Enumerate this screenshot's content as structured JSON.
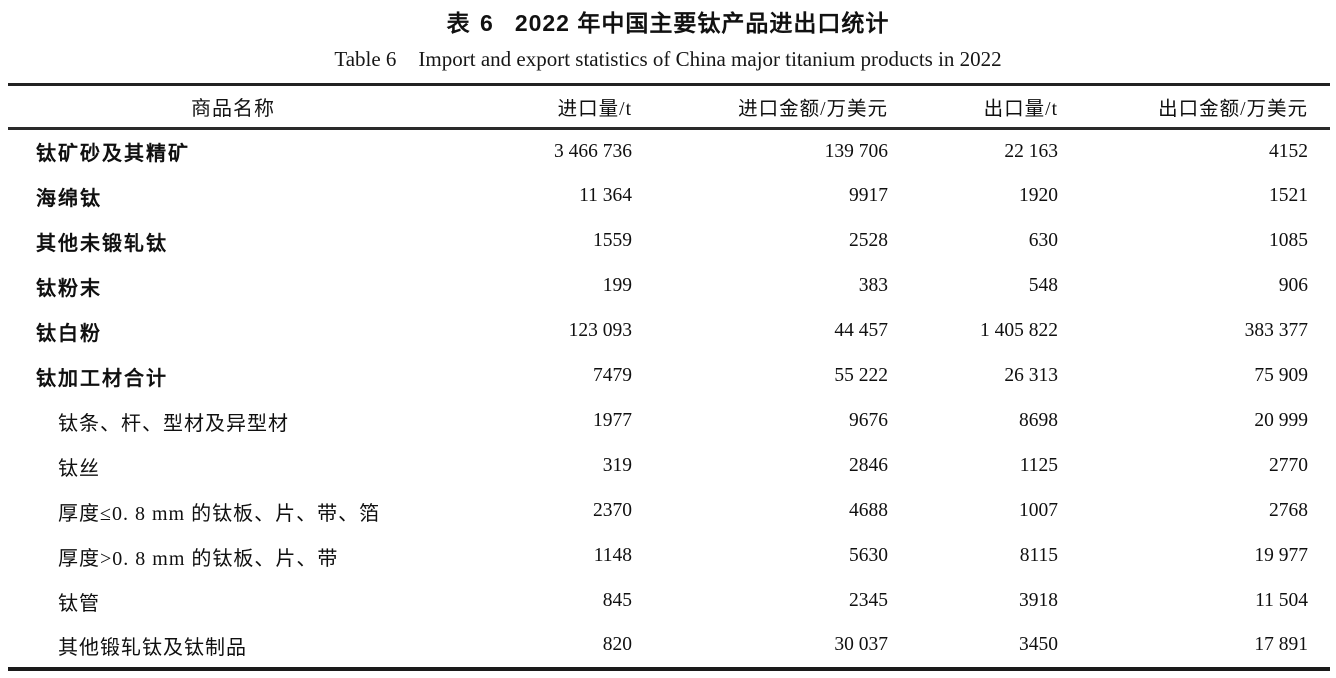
{
  "document": {
    "title_zh": {
      "label": "表 6",
      "text": "2022 年中国主要钛产品进出口统计"
    },
    "title_en": {
      "label": "Table 6",
      "text": "Import and export statistics of China major titanium products in 2022"
    }
  },
  "table": {
    "columns": [
      "商品名称",
      "进口量/t",
      "进口金额/万美元",
      "出口量/t",
      "出口金额/万美元"
    ],
    "rows": [
      {
        "name": "钛矿砂及其精矿",
        "level": "category",
        "import_qty": "3 466 736",
        "import_value": "139 706",
        "export_qty": "22 163",
        "export_value": "4152"
      },
      {
        "name": "海绵钛",
        "level": "category",
        "import_qty": "11 364",
        "import_value": "9917",
        "export_qty": "1920",
        "export_value": "1521"
      },
      {
        "name": "其他未锻轧钛",
        "level": "category",
        "import_qty": "1559",
        "import_value": "2528",
        "export_qty": "630",
        "export_value": "1085"
      },
      {
        "name": "钛粉末",
        "level": "category",
        "import_qty": "199",
        "import_value": "383",
        "export_qty": "548",
        "export_value": "906"
      },
      {
        "name": "钛白粉",
        "level": "category",
        "import_qty": "123 093",
        "import_value": "44 457",
        "export_qty": "1 405 822",
        "export_value": "383 377"
      },
      {
        "name": "钛加工材合计",
        "level": "category",
        "import_qty": "7479",
        "import_value": "55 222",
        "export_qty": "26 313",
        "export_value": "75 909"
      },
      {
        "name": "钛条、杆、型材及异型材",
        "level": "sub",
        "import_qty": "1977",
        "import_value": "9676",
        "export_qty": "8698",
        "export_value": "20 999"
      },
      {
        "name": "钛丝",
        "level": "sub",
        "import_qty": "319",
        "import_value": "2846",
        "export_qty": "1125",
        "export_value": "2770"
      },
      {
        "name": "厚度≤0. 8 mm 的钛板、片、带、箔",
        "level": "sub",
        "import_qty": "2370",
        "import_value": "4688",
        "export_qty": "1007",
        "export_value": "2768"
      },
      {
        "name": "厚度>0. 8 mm 的钛板、片、带",
        "level": "sub",
        "import_qty": "1148",
        "import_value": "5630",
        "export_qty": "8115",
        "export_value": "19 977"
      },
      {
        "name": "钛管",
        "level": "sub",
        "import_qty": "845",
        "import_value": "2345",
        "export_qty": "3918",
        "export_value": "11 504"
      },
      {
        "name": "其他锻轧钛及钛制品",
        "level": "sub",
        "import_qty": "820",
        "import_value": "30 037",
        "export_qty": "3450",
        "export_value": "17 891"
      }
    ]
  },
  "colors": {
    "background": "#ffffff",
    "text": "#101010",
    "rule": "#222222"
  }
}
